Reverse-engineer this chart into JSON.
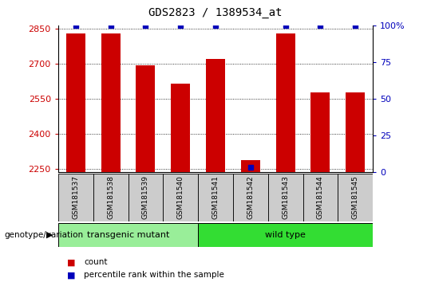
{
  "title": "GDS2823 / 1389534_at",
  "samples": [
    "GSM181537",
    "GSM181538",
    "GSM181539",
    "GSM181540",
    "GSM181541",
    "GSM181542",
    "GSM181543",
    "GSM181544",
    "GSM181545"
  ],
  "counts": [
    2830,
    2830,
    2695,
    2615,
    2720,
    2285,
    2830,
    2578,
    2578
  ],
  "percentiles": [
    100,
    100,
    100,
    100,
    100,
    3,
    100,
    100,
    100
  ],
  "ylim_left": [
    2235,
    2865
  ],
  "ylim_right": [
    0,
    100
  ],
  "yticks_left": [
    2250,
    2400,
    2550,
    2700,
    2850
  ],
  "yticks_right": [
    0,
    25,
    50,
    75,
    100
  ],
  "bar_color": "#cc0000",
  "dot_color": "#0000bb",
  "group_colors": {
    "transgenic mutant": "#99ee99",
    "wild type": "#33dd33"
  },
  "sample_box_color": "#cccccc",
  "bg_color": "#ffffff",
  "axis_label_color_left": "#cc0000",
  "axis_label_color_right": "#0000bb",
  "legend_count_color": "#cc0000",
  "legend_pct_color": "#0000bb",
  "bar_width": 0.55,
  "baseline": 2235,
  "n_transgenic": 4,
  "n_wildtype": 5
}
